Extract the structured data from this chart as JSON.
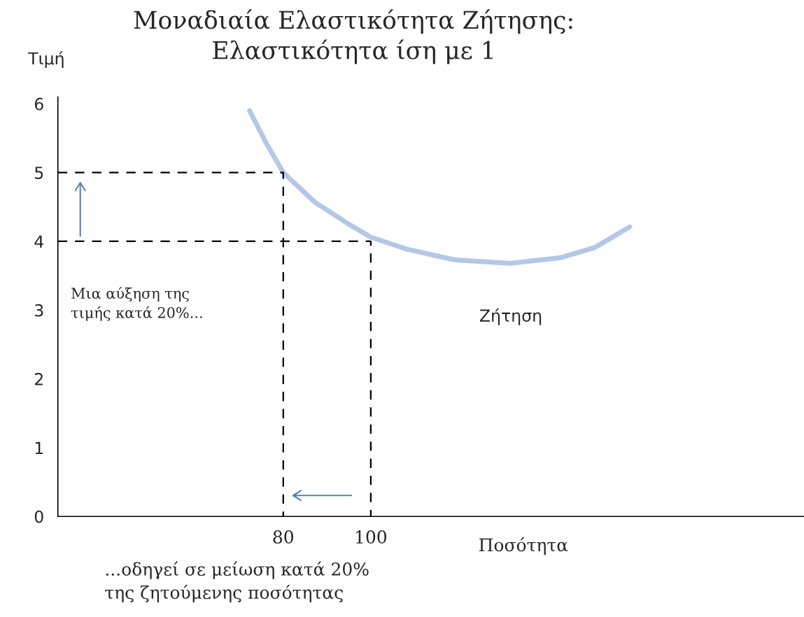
{
  "chart_data": {
    "type": "line",
    "title": "Μοναδιαία Ελαστικότητα Ζήτησης:\nΕλαστικότητα ίση με 1",
    "xlabel": "Ποσότητα",
    "ylabel": "Τιμή",
    "xlim": [
      28.5,
      199
    ],
    "xticks": [
      80,
      100
    ],
    "ylim": [
      0,
      6.1
    ],
    "yticks": [
      0,
      1,
      2,
      3,
      4,
      5,
      6
    ],
    "grid": false,
    "legend": false,
    "series": [
      {
        "name": "Ζήτηση",
        "color": "#b4c7e7",
        "line_style": "solid",
        "x": [
          72.3,
          76.0,
          80,
          87.2,
          95.2,
          100,
          108,
          119.2,
          132,
          143.2,
          151.2,
          159.2
        ],
        "values": [
          5.9,
          5.44,
          5.0,
          4.57,
          4.24,
          4.06,
          3.89,
          3.73,
          3.68,
          3.76,
          3.91,
          4.21
        ]
      },
      {
        "color": "#000000",
        "line_style": "dashed",
        "x": [
          28.5,
          80,
          80
        ],
        "values": [
          5,
          5,
          0
        ]
      },
      {
        "color": "#000000",
        "line_style": "dashed",
        "x": [
          28.5,
          100,
          100
        ],
        "values": [
          4,
          4,
          0
        ]
      }
    ],
    "annotations": [
      "Μια αύξηση της\nτιμής κατά 20%...",
      "...οδηγεί σε μείωση κατά 20%\nτης ζητούμενης ποσότητας"
    ]
  }
}
